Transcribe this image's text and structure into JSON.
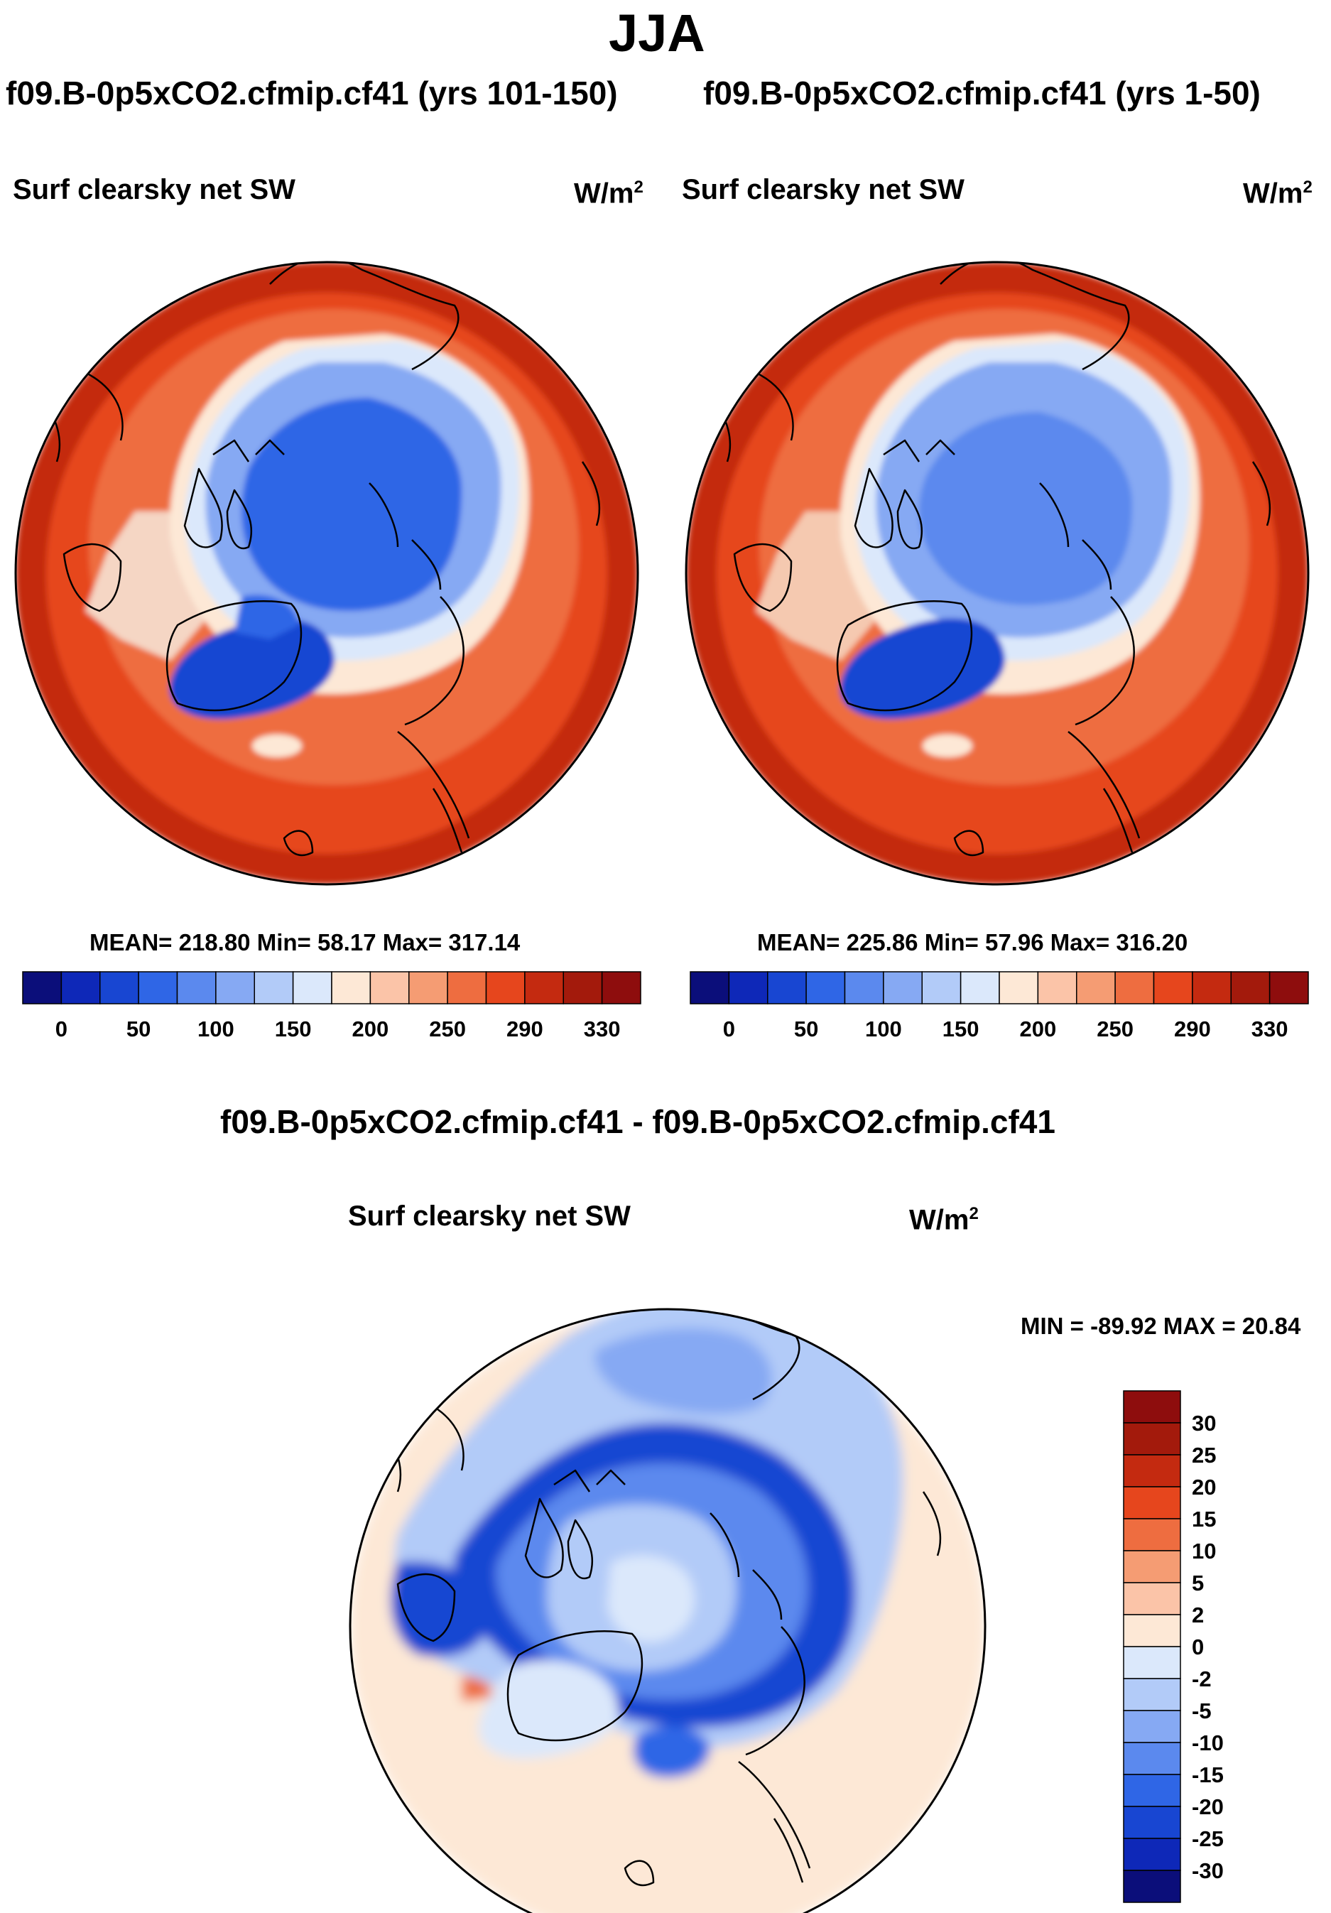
{
  "page": {
    "season_title": "JJA"
  },
  "colors": {
    "seq13": [
      "#0b0e7a",
      "#0e28b8",
      "#1846d2",
      "#2f66e6",
      "#5b89ee",
      "#86a9f3",
      "#b2cbf8",
      "#dbe8fb",
      "#fde8d6",
      "#fbc4a8",
      "#f59c73",
      "#ee6d40",
      "#e6461d",
      "#c42a10",
      "#8e0d0d"
    ],
    "div": [
      "#0b0e7a",
      "#0e28b8",
      "#1846d2",
      "#2f66e6",
      "#5b89ee",
      "#86a9f3",
      "#b2cbf8",
      "#dbe8fb",
      "#fde8d6",
      "#fbc4a8",
      "#f59c73",
      "#ee6d40",
      "#e6461d",
      "#c42a10",
      "#8e0d0d"
    ]
  },
  "chart_data": [
    {
      "type": "heatmap",
      "title": "f09.B-0p5xCO2.cfmip.cf41 (yrs 101-150)",
      "subtitle": "Surf clearsky net SW",
      "units": "W/m",
      "units_sup": "2",
      "projection": "north polar stereographic",
      "mean_text": "MEAN= 218.80  Min=  58.17  Max= 317.14",
      "mean": 218.8,
      "min": 58.17,
      "max": 317.14,
      "colorbar_labels": [
        "0",
        "50",
        "100",
        "150",
        "200",
        "250",
        "290",
        "330"
      ],
      "colorbar_boxes": 16,
      "colorbar_orientation": "horizontal"
    },
    {
      "type": "heatmap",
      "title": "f09.B-0p5xCO2.cfmip.cf41 (yrs 1-50)",
      "subtitle": "Surf clearsky net SW",
      "units": "W/m",
      "units_sup": "2",
      "projection": "north polar stereographic",
      "mean_text": "MEAN= 225.86  Min=  57.96  Max= 316.20",
      "mean": 225.86,
      "min": 57.96,
      "max": 316.2,
      "colorbar_labels": [
        "0",
        "50",
        "100",
        "150",
        "200",
        "250",
        "290",
        "330"
      ],
      "colorbar_boxes": 16,
      "colorbar_orientation": "horizontal"
    },
    {
      "type": "heatmap",
      "title": "f09.B-0p5xCO2.cfmip.cf41 - f09.B-0p5xCO2.cfmip.cf41",
      "subtitle": "Surf clearsky net SW",
      "units": "W/m",
      "units_sup": "2",
      "projection": "north polar stereographic",
      "minmax_text": "MIN = -89.92 MAX =  20.84",
      "min": -89.92,
      "max": 20.84,
      "colorbar_labels": [
        "30",
        "25",
        "20",
        "15",
        "10",
        "5",
        "2",
        "0",
        "-2",
        "-5",
        "-10",
        "-15",
        "-20",
        "-25",
        "-30"
      ],
      "colorbar_boxes": 16,
      "colorbar_orientation": "vertical"
    }
  ]
}
